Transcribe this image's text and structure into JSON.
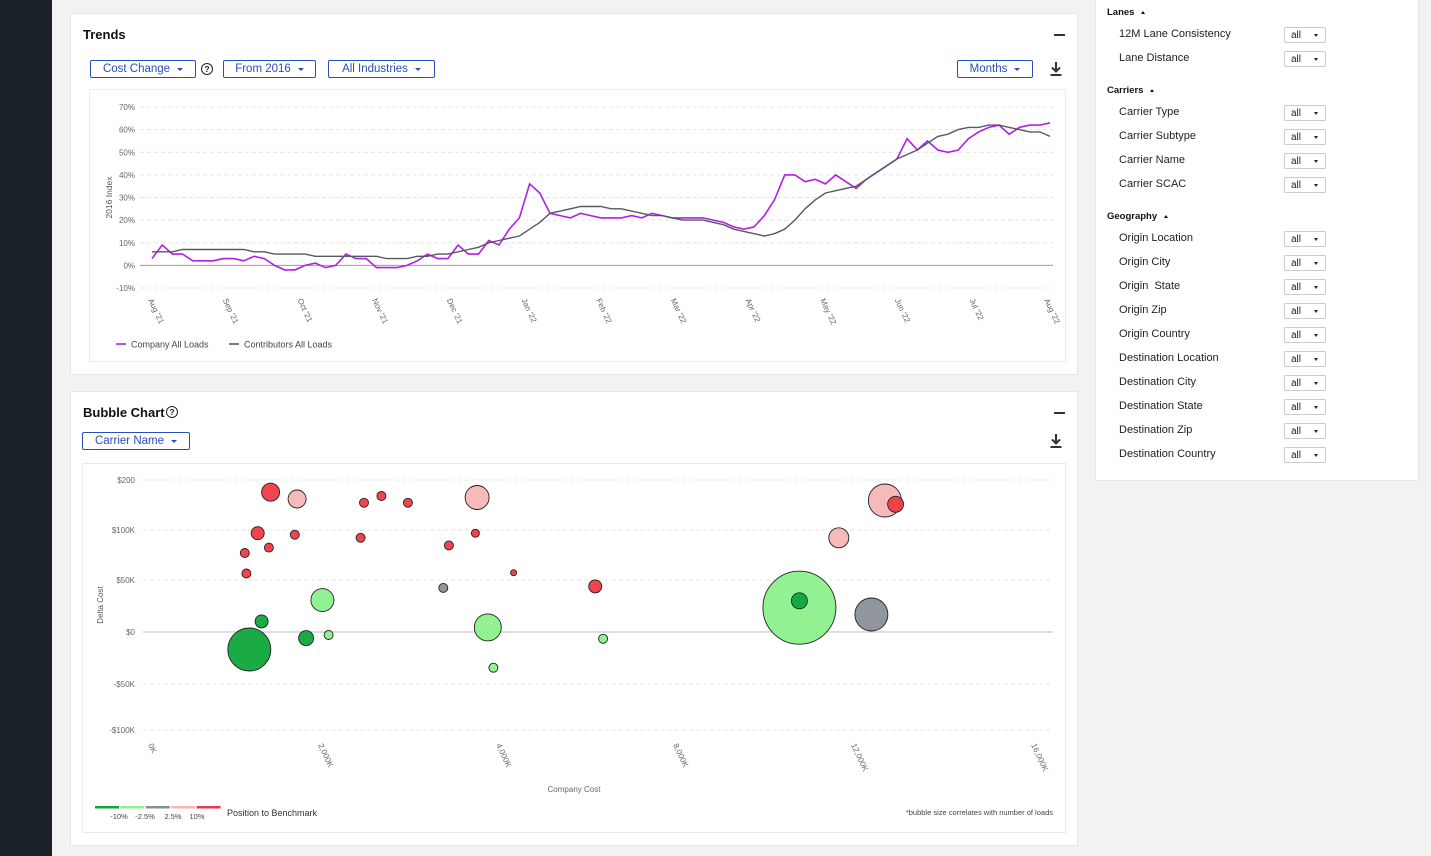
{
  "trends": {
    "title": "Trends",
    "controls": {
      "metric": "Cost Change",
      "from": "From 2016",
      "industry": "All Industries",
      "period": "Months"
    },
    "icons": {
      "help": "help-circle-icon",
      "download": "download-icon",
      "collapse": "minus-icon"
    }
  },
  "bubble": {
    "title": "Bubble Chart",
    "controls": {
      "groupby": "Carrier Name"
    },
    "legend_title": "Position to Benchmark",
    "scale_labels": [
      "-10%",
      "-2.5%",
      "2.5%",
      "10%"
    ],
    "scale_colors": [
      "#0ea63a",
      "#8cf08c",
      "#8a8f99",
      "#f7b6b6",
      "#ef3a45"
    ],
    "note": "*bubble size correlates with number of loads",
    "icons": {
      "help": "help-circle-icon",
      "download": "download-icon",
      "collapse": "minus-icon"
    }
  },
  "chart_data": [
    {
      "type": "line",
      "ylabel": "2016 Index",
      "ylim": [
        -10,
        70
      ],
      "yticks": [
        -10,
        0,
        10,
        20,
        30,
        40,
        50,
        60,
        70
      ],
      "ytick_labels": [
        "-10%",
        "0%",
        "10%",
        "20%",
        "30%",
        "40%",
        "50%",
        "60%",
        "70%"
      ],
      "x_tick_labels": [
        "Aug '21",
        "Sep '21",
        "Oct '21",
        "Nov '21",
        "Dec '21",
        "Jan '22",
        "Feb '22",
        "Mar '22",
        "Apr '22",
        "May '22",
        "Jun '22",
        "Jul '22",
        "Aug '22"
      ],
      "grid": true,
      "legend": "bottom-left",
      "series": [
        {
          "name": "Company All Loads",
          "color": "#b21ee6",
          "values": [
            3,
            9,
            5,
            5,
            2,
            2,
            2,
            3,
            3,
            2,
            4,
            3,
            0,
            -2,
            -2,
            0,
            1,
            -1,
            0,
            5,
            3,
            3,
            -1,
            -1,
            -1,
            0,
            2,
            5,
            3,
            3,
            9,
            5,
            5,
            11,
            9,
            16,
            21,
            36,
            32,
            23,
            22,
            21,
            23,
            22,
            21,
            21,
            21,
            22,
            21,
            23,
            22,
            21,
            21,
            21,
            21,
            20,
            19,
            17,
            16,
            17,
            22,
            29,
            40,
            40,
            37,
            38,
            36,
            40,
            37,
            34,
            38,
            41,
            44,
            47,
            56,
            51,
            55,
            51,
            50,
            51,
            56,
            59,
            61,
            62,
            58,
            61,
            62,
            62,
            63
          ]
        },
        {
          "name": "Contributors All Loads",
          "color": "#555a60",
          "values": [
            6,
            6,
            6,
            7,
            7,
            7,
            7,
            7,
            7,
            7,
            6,
            6,
            5,
            5,
            5,
            5,
            4,
            4,
            4,
            4,
            4,
            4,
            4,
            3,
            3,
            3,
            4,
            4,
            5,
            5,
            6,
            7,
            8,
            10,
            11,
            12,
            13,
            16,
            19,
            23,
            24,
            25,
            26,
            26,
            26,
            25,
            25,
            24,
            23,
            22,
            22,
            21,
            20,
            20,
            20,
            19,
            18,
            16,
            15,
            14,
            13,
            14,
            16,
            20,
            25,
            29,
            32,
            33,
            34,
            35,
            38,
            41,
            44,
            47,
            49,
            51,
            54,
            57,
            58,
            60,
            61,
            61,
            62,
            62,
            61,
            60,
            59,
            59,
            57
          ]
        }
      ]
    },
    {
      "type": "scatter",
      "xlabel": "Company Cost",
      "ylabel": "Delta Cost",
      "xlim": [
        0,
        16000
      ],
      "ylim": [
        -100,
        200
      ],
      "x_tick_labels": [
        "0K",
        "2,000K",
        "4,000K",
        "8,000K",
        "12,000K",
        "16,000K"
      ],
      "y_tick_labels": [
        "$200",
        "$100K",
        "$50K",
        "$0",
        "-$50K",
        "-$100K"
      ],
      "grid": true,
      "size_legend": "bubble size correlates with number of loads",
      "points": [
        {
          "x": 2180,
          "y": 184,
          "r": 9,
          "category": "10%"
        },
        {
          "x": 2650,
          "y": 175,
          "r": 9,
          "category": "2.5%"
        },
        {
          "x": 3840,
          "y": 170,
          "r": 4.5,
          "category": "10%"
        },
        {
          "x": 4150,
          "y": 179,
          "r": 4.5,
          "category": "10%"
        },
        {
          "x": 4620,
          "y": 170,
          "r": 4.5,
          "category": "10%"
        },
        {
          "x": 5850,
          "y": 177,
          "r": 12,
          "category": "2.5%"
        },
        {
          "x": 13100,
          "y": 173,
          "r": 16.5,
          "category": "2.5%"
        },
        {
          "x": 13290,
          "y": 168,
          "r": 8,
          "category": "10%"
        },
        {
          "x": 1950,
          "y": 130,
          "r": 6.5,
          "category": "10%"
        },
        {
          "x": 2610,
          "y": 128,
          "r": 4.5,
          "category": "10%"
        },
        {
          "x": 3780,
          "y": 124,
          "r": 4.5,
          "category": "10%"
        },
        {
          "x": 5820,
          "y": 130,
          "r": 4,
          "category": "10%"
        },
        {
          "x": 12280,
          "y": 124,
          "r": 10,
          "category": "2.5%"
        },
        {
          "x": 1720,
          "y": 104,
          "r": 4.5,
          "category": "10%"
        },
        {
          "x": 2150,
          "y": 111,
          "r": 4.5,
          "category": "10%"
        },
        {
          "x": 5350,
          "y": 114,
          "r": 4.5,
          "category": "10%"
        },
        {
          "x": 1750,
          "y": 77,
          "r": 4.5,
          "category": "10%"
        },
        {
          "x": 6500,
          "y": 78,
          "r": 3,
          "category": "10%"
        },
        {
          "x": 5250,
          "y": 58,
          "r": 4.5,
          "category": "0"
        },
        {
          "x": 7950,
          "y": 60,
          "r": 6.5,
          "category": "10%"
        },
        {
          "x": 3100,
          "y": 42,
          "r": 11.5,
          "category": "-2.5%"
        },
        {
          "x": 11580,
          "y": 32,
          "r": 36.5,
          "category": "-2.5%"
        },
        {
          "x": 11580,
          "y": 41,
          "r": 8,
          "category": "-10%"
        },
        {
          "x": 12860,
          "y": 23,
          "r": 16.5,
          "category": "0"
        },
        {
          "x": 2020,
          "y": 14,
          "r": 6.5,
          "category": "-10%"
        },
        {
          "x": 6040,
          "y": 6,
          "r": 13.5,
          "category": "-2.5%"
        },
        {
          "x": 3210,
          "y": -4,
          "r": 4.5,
          "category": "-2.5%"
        },
        {
          "x": 2810,
          "y": -8,
          "r": 7.5,
          "category": "-10%"
        },
        {
          "x": 8090,
          "y": -9,
          "r": 4.5,
          "category": "-2.5%"
        },
        {
          "x": 1800,
          "y": -23,
          "r": 21.5,
          "category": "-10%"
        },
        {
          "x": 6140,
          "y": -47,
          "r": 4.5,
          "category": "-2.5%"
        }
      ]
    }
  ],
  "filters": {
    "sections": [
      {
        "title": "Lanes",
        "items": [
          {
            "label": "12M Lane Consistency",
            "value": "all"
          },
          {
            "label": "Lane Distance",
            "value": "all"
          }
        ]
      },
      {
        "title": "Carriers",
        "items": [
          {
            "label": "Carrier Type",
            "value": "all"
          },
          {
            "label": "Carrier Subtype",
            "value": "all"
          },
          {
            "label": "Carrier Name",
            "value": "all"
          },
          {
            "label": "Carrier SCAC",
            "value": "all"
          }
        ]
      },
      {
        "title": "Geography",
        "items": [
          {
            "label": "Origin Location",
            "value": "all"
          },
          {
            "label": "Origin City",
            "value": "all"
          },
          {
            "label": "Origin  State",
            "value": "all"
          },
          {
            "label": "Origin Zip",
            "value": "all"
          },
          {
            "label": "Origin Country",
            "value": "all"
          },
          {
            "label": "Destination Location",
            "value": "all"
          },
          {
            "label": "Destination City",
            "value": "all"
          },
          {
            "label": "Destination State",
            "value": "all"
          },
          {
            "label": "Destination Zip",
            "value": "all"
          },
          {
            "label": "Destination Country",
            "value": "all"
          }
        ]
      }
    ]
  }
}
